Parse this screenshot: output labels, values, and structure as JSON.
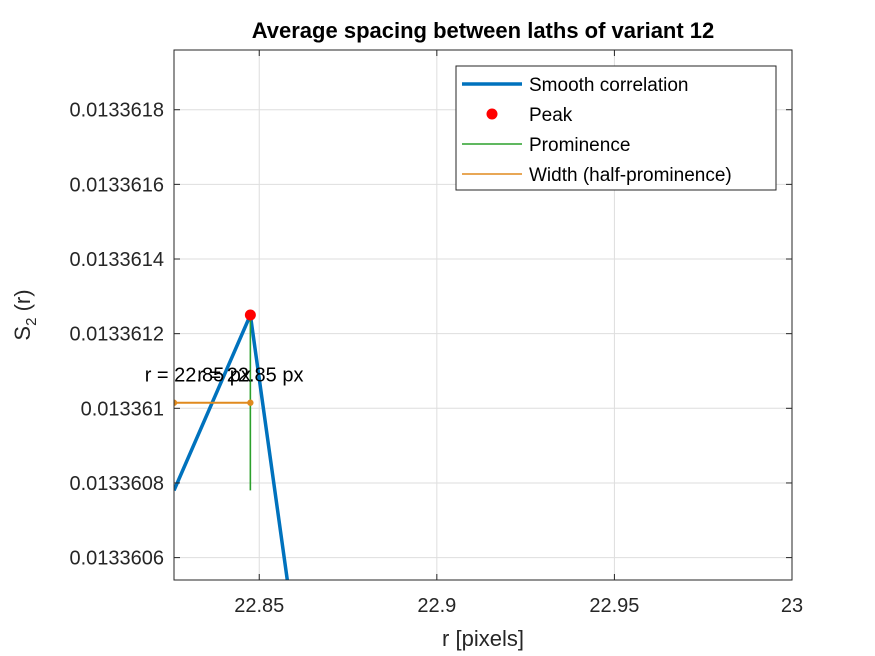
{
  "chart_data": {
    "type": "line",
    "title": "Average spacing between laths of variant 12",
    "xlabel": "r [pixels]",
    "ylabel_main": "S",
    "ylabel_sub": "2",
    "ylabel_tail": " (r)",
    "xlim": [
      22.826,
      23.0
    ],
    "ylim": [
      0.01336054,
      0.01336196
    ],
    "xticks": [
      22.85,
      22.9,
      22.95,
      23.0
    ],
    "xtick_labels": [
      "22.85",
      "22.9",
      "22.95",
      "23"
    ],
    "yticks": [
      0.0133606,
      0.0133608,
      0.013361,
      0.0133612,
      0.0133614,
      0.0133616,
      0.0133618
    ],
    "ytick_labels": [
      "0.0133606",
      "0.0133608",
      "0.013361",
      "0.0133612",
      "0.0133614",
      "0.0133616",
      "0.0133618"
    ],
    "grid": true,
    "legend_position": "top-right",
    "series": [
      {
        "name": "Smooth correlation",
        "kind": "line",
        "color": "#0072BD",
        "x": [
          22.826,
          22.8475,
          22.8579
        ],
        "y": [
          0.01336078,
          0.01336125,
          0.01336054
        ]
      },
      {
        "name": "Peak",
        "kind": "marker",
        "color": "#FF0000",
        "x": [
          22.8475
        ],
        "y": [
          0.01336125
        ]
      },
      {
        "name": "Prominence",
        "kind": "vline",
        "color": "#2CA02C",
        "x": 22.8475,
        "y": [
          0.01336078,
          0.01336125
        ]
      },
      {
        "name": "Width (half-prominence)",
        "kind": "hline",
        "color": "#E08A1E",
        "x": [
          22.826,
          22.8475
        ],
        "y": 0.013361015
      }
    ],
    "annotations": [
      {
        "text": "r = 22.85 px",
        "x": 22.8327,
        "y": 0.0133610715
      },
      {
        "text": "r = 22.85 px",
        "x": 22.8475,
        "y": 0.0133610715
      }
    ]
  }
}
